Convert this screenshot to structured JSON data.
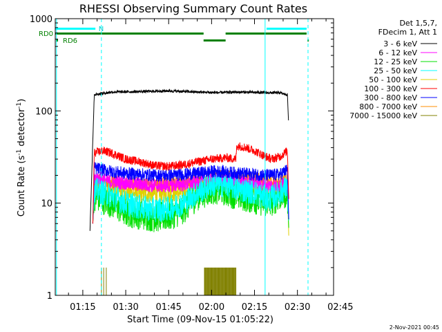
{
  "chart_data": {
    "type": "line",
    "title": "RHESSI Observing Summary Count Rates",
    "xlabel": "Start Time (09-Nov-15 01:05:22)",
    "ylabel_prefix": "Count Rate (s",
    "ylabel_mid": " detector",
    "ylabel_suffix": ")",
    "ylabel_sup": "-1",
    "yscale": "log",
    "xlim_min": [
      5.37,
      102.63
    ],
    "ylim": [
      1,
      1000
    ],
    "x_ticks": [
      {
        "min": 15,
        "label": "01:15"
      },
      {
        "min": 30,
        "label": "01:30"
      },
      {
        "min": 45,
        "label": "01:45"
      },
      {
        "min": 60,
        "label": "02:00"
      },
      {
        "min": 75,
        "label": "02:15"
      },
      {
        "min": 90,
        "label": "02:30"
      },
      {
        "min": 105,
        "label": "02:45"
      }
    ],
    "y_ticks": [
      {
        "value": 1,
        "label": "1"
      },
      {
        "value": 10,
        "label": "10"
      },
      {
        "value": 100,
        "label": "100"
      },
      {
        "value": 1000,
        "label": "1000"
      }
    ],
    "legend_header": [
      "Det 1,5,7,",
      "FDecim 1, Att 1"
    ],
    "series": [
      {
        "name": "3 - 6 keV",
        "color": "#000000",
        "x": [
          17.5,
          19,
          25,
          35,
          45,
          55,
          62,
          70,
          78,
          84,
          85,
          86.5,
          86.9
        ],
        "y": [
          5,
          150,
          160,
          162,
          165,
          160,
          158,
          160,
          158,
          157,
          153,
          150,
          75
        ]
      },
      {
        "name": "6 - 12 keV",
        "color": "#ff00ff",
        "x": [
          18.5,
          19,
          25,
          30,
          35,
          40,
          45,
          50,
          55,
          60,
          63,
          66,
          70,
          75,
          80,
          84,
          86.5,
          87
        ],
        "y": [
          6,
          19,
          17,
          16.5,
          16,
          15.5,
          15.5,
          16,
          16.5,
          18,
          18,
          17.5,
          17,
          16.5,
          15.5,
          15.5,
          17,
          6
        ]
      },
      {
        "name": "12 - 25 keV",
        "color": "#00e000",
        "x": [
          18.5,
          19,
          25,
          30,
          35,
          40,
          45,
          50,
          55,
          60,
          63,
          66,
          70,
          75,
          80,
          84,
          86.5,
          87
        ],
        "y": [
          6,
          12,
          10,
          8,
          7.5,
          7,
          7.2,
          8.5,
          12,
          14,
          14,
          13,
          12,
          11,
          10,
          12,
          13,
          5
        ]
      },
      {
        "name": "25 - 50 keV",
        "color": "#00ffff",
        "x": [
          18.5,
          19,
          25,
          30,
          35,
          40,
          45,
          50,
          55,
          60,
          63,
          66,
          70,
          75,
          80,
          84,
          86.5,
          87
        ],
        "y": [
          6,
          14,
          12,
          10,
          9,
          8.5,
          8.7,
          10,
          13,
          16,
          16,
          15.5,
          14,
          13,
          11,
          13,
          15,
          6
        ]
      },
      {
        "name": "50 - 100 keV",
        "color": "#e0d000",
        "x": [
          18.5,
          19,
          25,
          30,
          35,
          40,
          45,
          50,
          55,
          60,
          63,
          66,
          70,
          75,
          80,
          84,
          86.5,
          87
        ],
        "y": [
          6,
          15,
          13.5,
          13,
          12.5,
          12.5,
          12.5,
          13,
          14,
          16,
          16,
          15.5,
          15,
          14.5,
          14,
          14.5,
          15,
          4
        ]
      },
      {
        "name": "100 - 300 keV",
        "color": "#ff0000",
        "x": [
          18.5,
          19,
          22,
          25,
          30,
          35,
          40,
          45,
          50,
          55,
          60,
          65,
          68.5,
          68.8,
          72,
          75,
          78,
          81,
          84,
          86.5,
          87
        ],
        "y": [
          6,
          35,
          37,
          35,
          30,
          28,
          25.5,
          25,
          26,
          28,
          30,
          31,
          30,
          42,
          40,
          37,
          33,
          30,
          32,
          37,
          10
        ]
      },
      {
        "name": "300 - 800 keV",
        "color": "#0000ff",
        "x": [
          18.5,
          19,
          25,
          30,
          35,
          40,
          45,
          50,
          55,
          60,
          63,
          66,
          70,
          75,
          80,
          84,
          86.5,
          87
        ],
        "y": [
          6,
          24,
          22,
          21,
          20.5,
          20,
          20,
          20.5,
          21,
          22,
          22,
          21.5,
          21,
          20.5,
          20,
          20.5,
          23,
          6
        ]
      },
      {
        "name": "800 - 7000 keV",
        "color": "#ff8c00",
        "x": [
          18.5,
          19,
          25,
          30,
          35,
          40,
          45,
          50,
          55,
          60,
          63,
          66,
          70,
          75,
          80,
          84,
          86.5,
          87
        ],
        "y": [
          6,
          18,
          17,
          16.5,
          16,
          16,
          16,
          16.5,
          17,
          19,
          19.5,
          19,
          18.5,
          18,
          17.5,
          17,
          18,
          6
        ]
      },
      {
        "name": "7000 - 15000 keV",
        "color": "#808000",
        "x": [
          21.5,
          22.3,
          23.2,
          57.5,
          58.5,
          59.5,
          60.5,
          61.5,
          62.5,
          63.5,
          64.5,
          65.5,
          66.5,
          67.5,
          68.5
        ],
        "y": [
          2,
          2,
          2,
          2,
          2,
          2,
          2,
          2,
          2,
          2,
          2,
          2,
          2,
          2,
          2
        ]
      }
    ],
    "state_bars": {
      "N_label": "N",
      "RD0_label": "RD0",
      "RD6_label": "RD6",
      "cyan_segments_min": [
        [
          5.37,
          19.4
        ],
        [
          79.2,
          93.2
        ]
      ],
      "upper_green_segments_min": [
        [
          5.37,
          57.2
        ],
        [
          64.9,
          93.2
        ]
      ],
      "lower_green_segments_min": [
        [
          57.2,
          64.9
        ],
        [
          93.5,
          93.9
        ]
      ]
    },
    "vertical_markers_min": {
      "cyan_solid": [
        5.8,
        78.7
      ],
      "cyan_dashed": [
        21.5,
        93.7
      ]
    }
  },
  "timestamp": "2-Nov-2021 00:45"
}
